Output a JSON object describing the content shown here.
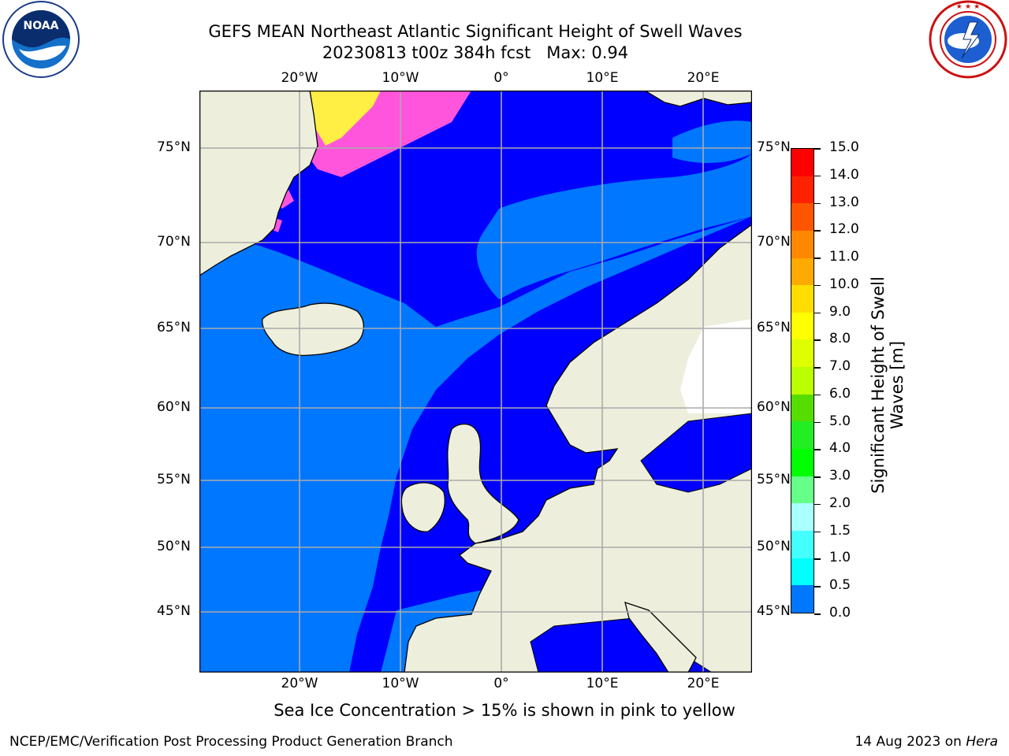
{
  "header": {
    "title_line1": "GEFS MEAN Northeast Atlantic Significant Height of Swell Waves",
    "title_line2": "20230813 t00z 384h fcst   Max: 0.94"
  },
  "logos": {
    "noaa": {
      "text": "NOAA",
      "icon": "noaa-seal-icon",
      "ring_text": "NATIONAL OCEANIC AND ATMOSPHERIC ADMINISTRATION · U.S. DEPARTMENT OF COMMERCE"
    },
    "nws": {
      "icon": "nws-seal-icon",
      "ring_text": "NATIONAL WEATHER SERVICE"
    }
  },
  "map": {
    "lon_labels": [
      "20°W",
      "10°W",
      "0°",
      "10°E",
      "20°E"
    ],
    "lat_labels": [
      "75°N",
      "70°N",
      "65°N",
      "60°N",
      "55°N",
      "50°N",
      "45°N"
    ],
    "colors": {
      "land": "#eeeedd",
      "ocean_low": "#0000ff",
      "ocean_mid": "#0077ff",
      "ice_pink": "#ff55dd",
      "ice_yellow": "#ffee44",
      "grid": "#aaaaaa"
    }
  },
  "colorbar": {
    "label": "Significant Height of Swell Waves [m]",
    "ticks": [
      "15.0",
      "14.0",
      "13.0",
      "12.0",
      "11.0",
      "10.0",
      "9.0",
      "8.0",
      "7.0",
      "6.0",
      "5.0",
      "4.0",
      "3.0",
      "2.0",
      "1.5",
      "1.0",
      "0.5",
      "0.0"
    ],
    "colors": [
      "#ff0000",
      "#ff2200",
      "#ff5500",
      "#ff8800",
      "#ffaa00",
      "#ffdd00",
      "#ffff00",
      "#ddff00",
      "#bbff00",
      "#55dd00",
      "#22ee22",
      "#00ff00",
      "#66ff88",
      "#aaffff",
      "#44ffff",
      "#00ffff",
      "#0077ff",
      "#0000ff"
    ]
  },
  "note": "Sea Ice Concentration > 15% is shown in pink to yellow",
  "footer": {
    "left": "NCEP/EMC/Verification Post Processing Product Generation Branch",
    "date": "14 Aug 2023 on ",
    "machine": "Hera"
  }
}
